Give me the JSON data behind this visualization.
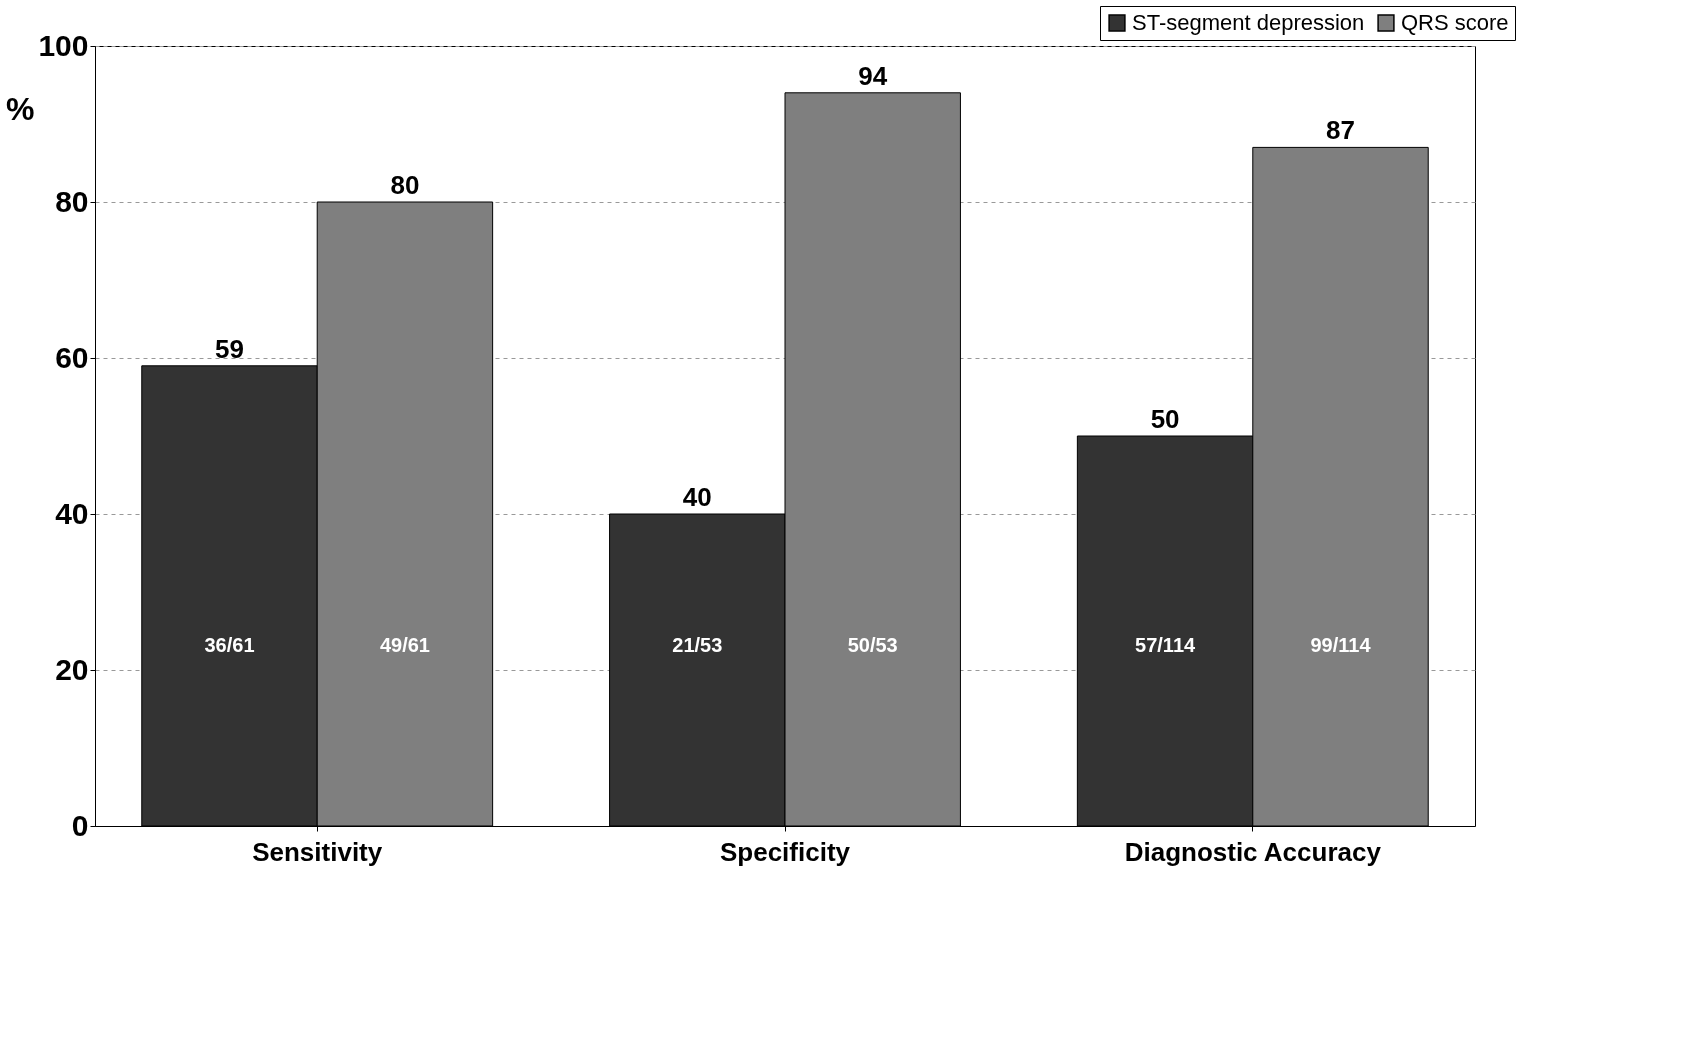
{
  "chart_data": {
    "type": "bar",
    "ylabel": "%",
    "categories": [
      "Sensitivity",
      "Specificity",
      "Diagnostic Accuracy"
    ],
    "series": [
      {
        "name": "ST-segment depression",
        "color": "#333333",
        "values": [
          59,
          40,
          50
        ]
      },
      {
        "name": "QRS score",
        "color": "#7f7f7f",
        "values": [
          80,
          94,
          87
        ]
      }
    ],
    "ylim": [
      0,
      100
    ],
    "yticks": [
      0,
      20,
      40,
      60,
      80,
      100
    ],
    "grid": "y",
    "legend": "top right",
    "data_labels": true,
    "annotations": [
      "36/61",
      "49/61",
      "21/53",
      "50/53",
      "57/114",
      "99/114"
    ]
  }
}
